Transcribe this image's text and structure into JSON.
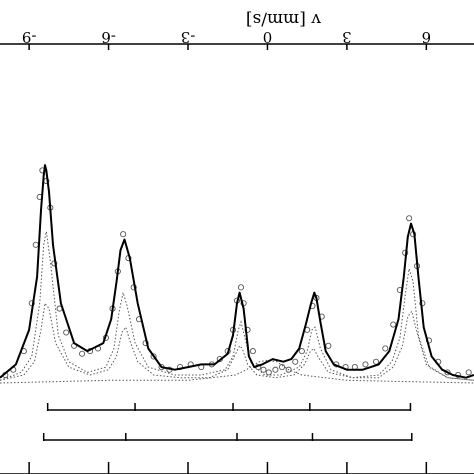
{
  "chart_data": {
    "type": "scatter",
    "title": "",
    "xlabel": "v [mm/s]",
    "ylabel": "",
    "x_ticks": [
      -9,
      -6,
      -3,
      0,
      3,
      6
    ],
    "x_tick_labels": [
      "-9",
      "-6",
      "-3",
      "0",
      "3",
      "6"
    ],
    "xlim": [
      -10.1,
      7.8
    ],
    "ylim": [
      0.0,
      1.08
    ],
    "grid": false,
    "legend": "none",
    "axis_orientation": "rotated 180 degrees (upside-down)",
    "colors": {
      "line": "#000000",
      "points": "#555555",
      "components": "#555555"
    },
    "series": [
      {
        "kind": "fit",
        "style": "solid",
        "x": [
          -10.1,
          -9.5,
          -9.0,
          -8.7,
          -8.55,
          -8.45,
          -8.4,
          -8.35,
          -8.25,
          -8.1,
          -7.8,
          -7.3,
          -6.8,
          -6.2,
          -5.9,
          -5.7,
          -5.55,
          -5.4,
          -5.2,
          -4.9,
          -4.5,
          -4.0,
          -3.5,
          -3.0,
          -2.5,
          -2.0,
          -1.5,
          -1.3,
          -1.15,
          -1.05,
          -0.9,
          -0.7,
          -0.5,
          -0.2,
          0.2,
          0.6,
          0.9,
          1.2,
          1.45,
          1.65,
          1.77,
          1.85,
          2.0,
          2.2,
          2.5,
          3.0,
          3.6,
          4.2,
          4.6,
          4.95,
          5.15,
          5.3,
          5.42,
          5.55,
          5.7,
          5.9,
          6.2,
          6.6,
          7.0,
          7.5,
          7.8
        ],
        "y": [
          0.02,
          0.07,
          0.2,
          0.4,
          0.65,
          0.78,
          0.82,
          0.8,
          0.72,
          0.52,
          0.3,
          0.15,
          0.12,
          0.15,
          0.24,
          0.38,
          0.5,
          0.54,
          0.47,
          0.3,
          0.13,
          0.06,
          0.05,
          0.06,
          0.07,
          0.07,
          0.11,
          0.18,
          0.3,
          0.34,
          0.28,
          0.1,
          0.06,
          0.07,
          0.09,
          0.08,
          0.09,
          0.13,
          0.22,
          0.3,
          0.34,
          0.32,
          0.23,
          0.12,
          0.07,
          0.05,
          0.05,
          0.07,
          0.12,
          0.24,
          0.4,
          0.55,
          0.6,
          0.56,
          0.4,
          0.21,
          0.1,
          0.05,
          0.03,
          0.02,
          0.03
        ]
      },
      {
        "kind": "data-points",
        "style": "open-circles",
        "x": [
          -9.9,
          -9.6,
          -9.2,
          -8.9,
          -8.75,
          -8.6,
          -8.5,
          -8.35,
          -8.2,
          -8.05,
          -7.85,
          -7.6,
          -7.3,
          -7.0,
          -6.7,
          -6.4,
          -6.1,
          -5.85,
          -5.65,
          -5.45,
          -5.25,
          -5.05,
          -4.85,
          -4.6,
          -4.3,
          -4.0,
          -3.7,
          -3.3,
          -2.9,
          -2.5,
          -2.1,
          -1.8,
          -1.5,
          -1.3,
          -1.15,
          -1.0,
          -0.9,
          -0.75,
          -0.55,
          -0.35,
          -0.15,
          0.05,
          0.3,
          0.55,
          0.8,
          1.05,
          1.3,
          1.5,
          1.7,
          1.85,
          2.05,
          2.3,
          2.6,
          2.95,
          3.3,
          3.7,
          4.1,
          4.45,
          4.75,
          5.0,
          5.2,
          5.35,
          5.5,
          5.65,
          5.85,
          6.1,
          6.45,
          6.8,
          7.2,
          7.6
        ],
        "y": [
          0.03,
          0.05,
          0.12,
          0.3,
          0.52,
          0.7,
          0.8,
          0.76,
          0.66,
          0.45,
          0.28,
          0.19,
          0.14,
          0.11,
          0.12,
          0.13,
          0.17,
          0.28,
          0.42,
          0.56,
          0.47,
          0.36,
          0.24,
          0.15,
          0.1,
          0.06,
          0.05,
          0.06,
          0.07,
          0.06,
          0.07,
          0.09,
          0.12,
          0.2,
          0.31,
          0.36,
          0.3,
          0.2,
          0.12,
          0.06,
          0.05,
          0.04,
          0.05,
          0.06,
          0.05,
          0.08,
          0.12,
          0.2,
          0.29,
          0.32,
          0.25,
          0.14,
          0.07,
          0.06,
          0.06,
          0.07,
          0.08,
          0.13,
          0.22,
          0.35,
          0.49,
          0.62,
          0.56,
          0.44,
          0.3,
          0.16,
          0.08,
          0.04,
          0.03,
          0.04
        ]
      },
      {
        "kind": "component",
        "style": "dotted",
        "x": [
          -10.1,
          -9.3,
          -8.9,
          -8.6,
          -8.45,
          -8.35,
          -8.2,
          -7.9,
          -7.5,
          -6.8,
          -6.1,
          -5.8,
          -5.6,
          -5.45,
          -5.3,
          -5.0,
          -4.5,
          -3.5,
          -2.5,
          -1.6,
          -1.3,
          -1.1,
          -1.0,
          -0.85,
          -0.6,
          -0.1,
          0.5,
          1.2,
          1.5,
          1.68,
          1.8,
          2.0,
          2.4,
          3.2,
          4.2,
          4.7,
          5.0,
          5.2,
          5.35,
          5.5,
          5.7,
          6.1,
          6.8,
          7.8
        ],
        "y": [
          0.01,
          0.04,
          0.1,
          0.3,
          0.52,
          0.57,
          0.46,
          0.18,
          0.08,
          0.04,
          0.06,
          0.13,
          0.27,
          0.34,
          0.29,
          0.15,
          0.06,
          0.03,
          0.03,
          0.05,
          0.1,
          0.2,
          0.23,
          0.17,
          0.07,
          0.03,
          0.03,
          0.06,
          0.12,
          0.2,
          0.21,
          0.13,
          0.05,
          0.02,
          0.03,
          0.08,
          0.17,
          0.33,
          0.43,
          0.38,
          0.18,
          0.06,
          0.02,
          0.01
        ]
      },
      {
        "kind": "component",
        "style": "dotted",
        "x": [
          -10.1,
          -9.2,
          -8.8,
          -8.55,
          -8.4,
          -8.25,
          -8.0,
          -7.5,
          -6.7,
          -6.0,
          -5.7,
          -5.5,
          -5.35,
          -5.2,
          -4.9,
          -4.3,
          -3.3,
          -2.2,
          -1.5,
          -1.2,
          -1.05,
          -0.95,
          -0.75,
          -0.4,
          0.3,
          1.0,
          1.4,
          1.62,
          1.75,
          1.9,
          2.3,
          3.2,
          4.2,
          4.75,
          5.1,
          5.3,
          5.45,
          5.62,
          6.0,
          6.8,
          7.8
        ],
        "y": [
          0.01,
          0.03,
          0.08,
          0.2,
          0.3,
          0.28,
          0.15,
          0.06,
          0.03,
          0.05,
          0.1,
          0.19,
          0.21,
          0.16,
          0.08,
          0.03,
          0.02,
          0.02,
          0.05,
          0.11,
          0.14,
          0.13,
          0.07,
          0.03,
          0.02,
          0.03,
          0.07,
          0.12,
          0.13,
          0.1,
          0.04,
          0.02,
          0.02,
          0.06,
          0.14,
          0.25,
          0.27,
          0.2,
          0.07,
          0.02,
          0.01
        ]
      },
      {
        "kind": "component",
        "style": "dotted",
        "x": [
          -10.1,
          -6.0,
          -3.0,
          -1.2,
          -0.8,
          -0.3,
          0.0,
          0.35,
          0.8,
          1.3,
          3.0,
          7.8
        ],
        "y": [
          0.0,
          0.01,
          0.01,
          0.03,
          0.05,
          0.08,
          0.085,
          0.08,
          0.05,
          0.03,
          0.01,
          0.0
        ]
      }
    ],
    "sextet_line_positions": [
      [
        -8.3,
        -5.0,
        -1.3,
        1.6,
        5.4
      ],
      [
        -8.45,
        -5.35,
        -1.15,
        1.7,
        5.45
      ]
    ]
  }
}
